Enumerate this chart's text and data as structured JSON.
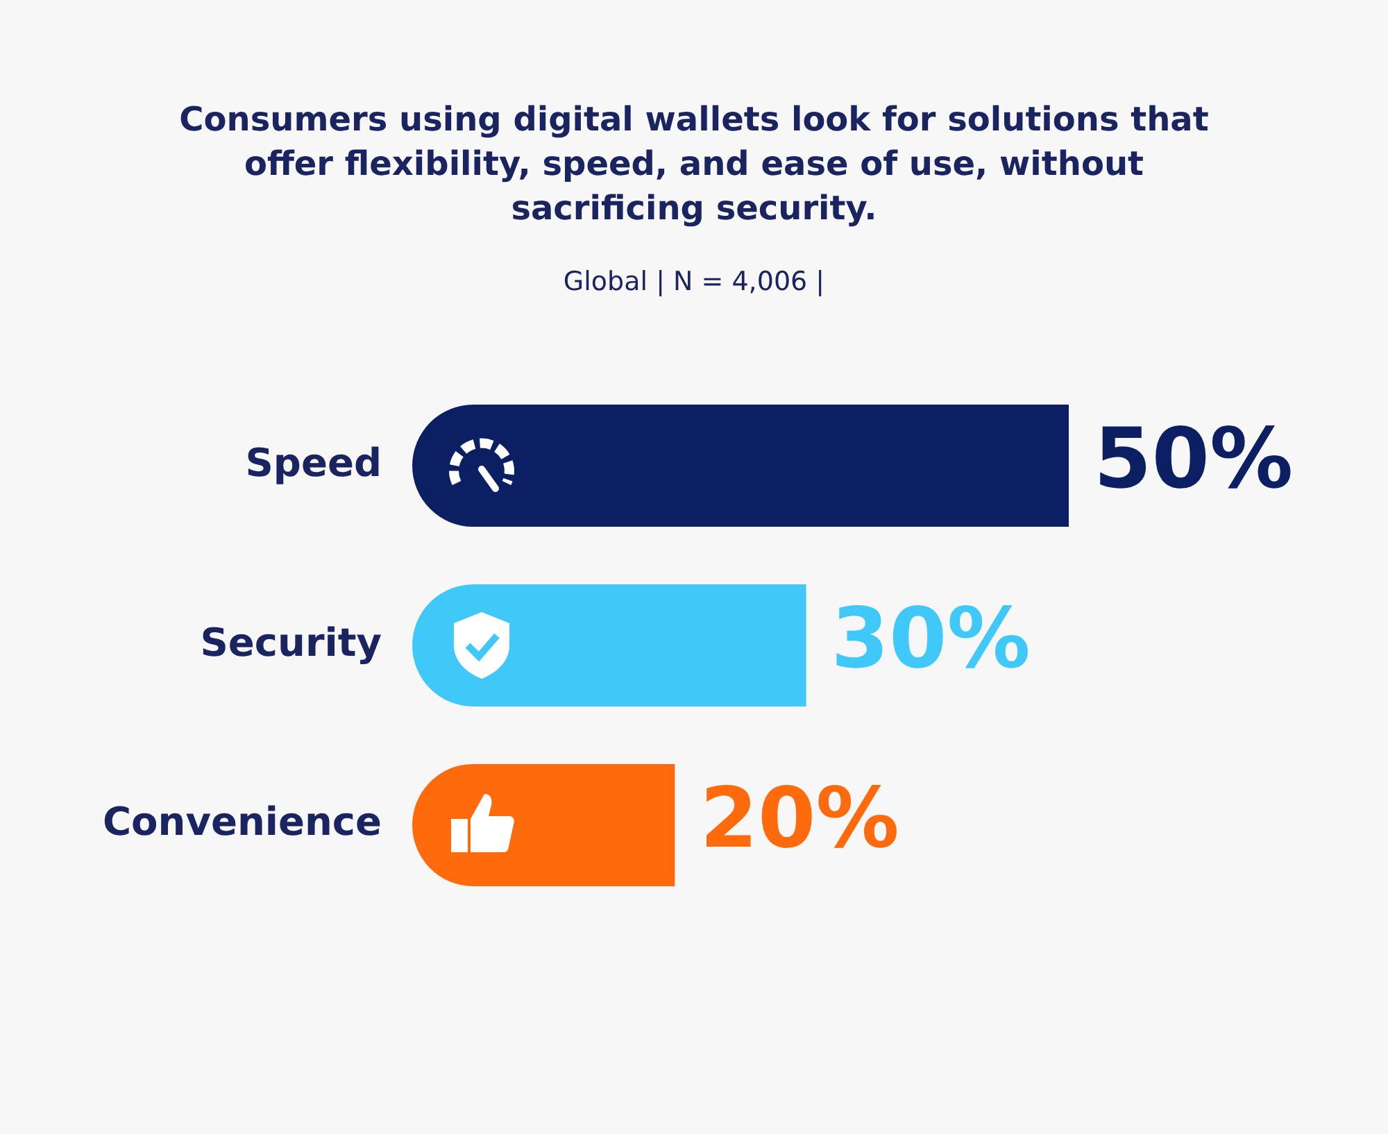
{
  "chart_data": {
    "type": "bar",
    "orientation": "horizontal",
    "title": "Consumers using digital wallets look for solutions that offer flexibility, speed, and ease of use, without sacrificing security.",
    "subtitle": "Global | N = 4,006 |",
    "categories": [
      "Speed",
      "Security",
      "Convenience"
    ],
    "values": [
      50,
      30,
      20
    ],
    "colors": [
      "#0d1f63",
      "#40c8f8",
      "#ff6a0c"
    ],
    "data_labels": true,
    "value_labels": [
      "50%",
      "30%",
      "20%"
    ],
    "tick_labels": "y",
    "grid": false,
    "legend": false
  }
}
